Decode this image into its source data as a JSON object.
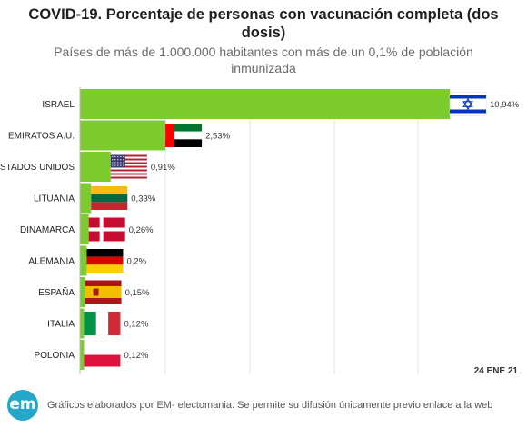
{
  "header": {
    "title_line1": "COVID-19. Porcentaje de personas con vacunación completa (dos",
    "title_line2": "dosis)",
    "subtitle_line1": "Países de más de 1.000.000 habitantes con más de un 0,1% de población",
    "subtitle_line2": "inmunizada"
  },
  "date_label": "24 ENE 21",
  "footer": {
    "logo_text": "em",
    "credit": "Gráficos elaborados por EM- electomania. Se permite su difusión únicamente previo enlace a la web"
  },
  "chart_data": {
    "type": "bar",
    "orientation": "horizontal",
    "categories": [
      "ISRAEL",
      "EMIRATOS A.U.",
      "ESTADOS UNIDOS",
      "LITUANIA",
      "DINAMARCA",
      "ALEMANIA",
      "ESPAÑA",
      "ITALIA",
      "POLONIA"
    ],
    "values": [
      10.94,
      2.53,
      0.91,
      0.33,
      0.26,
      0.2,
      0.15,
      0.12,
      0.12
    ],
    "value_labels": [
      "10,94%",
      "2,53%",
      "0,91%",
      "0,33%",
      "0,26%",
      "0,2%",
      "0,15%",
      "0,12%",
      "0,12%"
    ],
    "flags": [
      "israel-flag",
      "uae-flag",
      "usa-flag",
      "lithuania-flag",
      "denmark-flag",
      "germany-flag",
      "spain-flag",
      "italy-flag",
      "poland-flag"
    ],
    "xlim": [
      0,
      11
    ],
    "grid": true,
    "bar_color": "#7ccc2e",
    "colors": {
      "gridline": "#e3e3e3",
      "axis": "#bdbdbd",
      "label": "#222222",
      "value_label": "#333333"
    }
  }
}
